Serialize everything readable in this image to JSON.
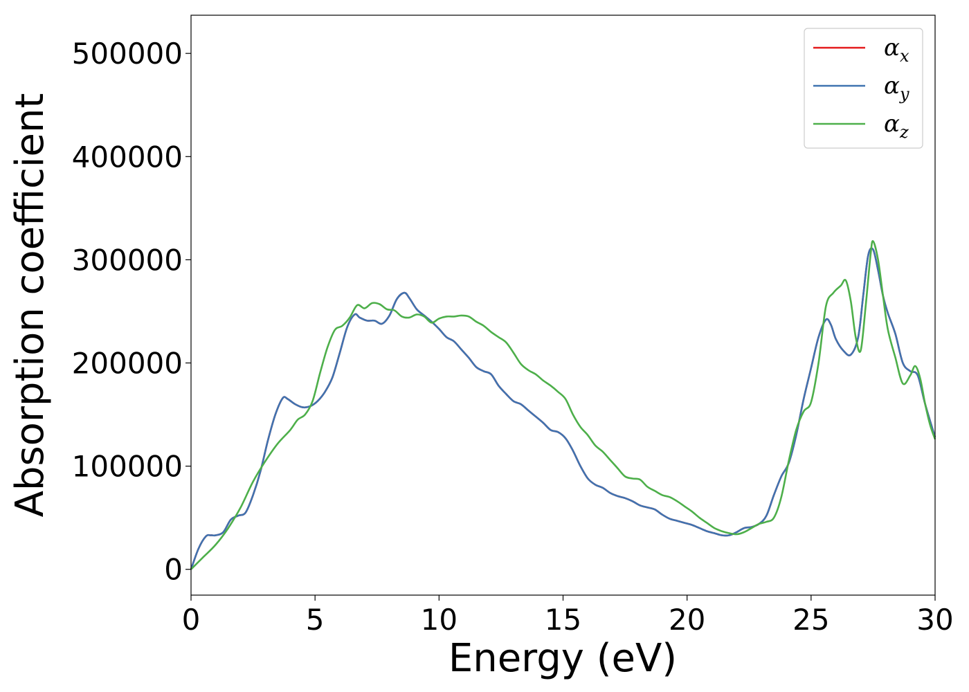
{
  "chart_data": {
    "type": "line",
    "xlabel": "Energy (eV)",
    "ylabel": "Absorption coefficient",
    "xlim": [
      0,
      30
    ],
    "ylim": [
      -25000,
      537000
    ],
    "xticks": [
      0,
      5,
      10,
      15,
      20,
      25,
      30
    ],
    "yticks": [
      0,
      100000,
      200000,
      300000,
      400000,
      500000
    ],
    "grid": false,
    "legend_position": "top-right",
    "series": [
      {
        "name": "α",
        "subscript": "x",
        "color": "#e41a1c",
        "x": [
          0,
          0.3,
          0.6,
          0.8,
          1.0,
          1.3,
          1.6,
          1.9,
          2.2,
          2.5,
          2.8,
          3.1,
          3.4,
          3.7,
          3.9,
          4.2,
          4.5,
          4.8,
          5.1,
          5.4,
          5.7,
          6.0,
          6.3,
          6.6,
          6.8,
          7.1,
          7.4,
          7.7,
          8.0,
          8.3,
          8.6,
          8.8,
          9.1,
          9.4,
          9.7,
          10.0,
          10.3,
          10.6,
          10.9,
          11.2,
          11.5,
          11.8,
          12.1,
          12.4,
          12.7,
          13.0,
          13.3,
          13.6,
          13.9,
          14.2,
          14.5,
          14.8,
          15.1,
          15.4,
          15.7,
          16.0,
          16.3,
          16.6,
          16.9,
          17.2,
          17.5,
          17.8,
          18.1,
          18.4,
          18.7,
          19.0,
          19.3,
          19.6,
          19.9,
          20.2,
          20.5,
          20.8,
          21.1,
          21.4,
          21.7,
          22.0,
          22.3,
          22.6,
          22.9,
          23.2,
          23.5,
          23.8,
          24.1,
          24.4,
          24.7,
          25.0,
          25.3,
          25.6,
          25.8,
          26.0,
          26.3,
          26.6,
          26.9,
          27.1,
          27.3,
          27.5,
          27.7,
          27.9,
          28.1,
          28.4,
          28.7,
          29.0,
          29.3,
          29.6,
          30.0
        ],
        "y": [
          0,
          20000,
          32000,
          33000,
          33000,
          36000,
          48000,
          52000,
          55000,
          72000,
          95000,
          125000,
          150000,
          166000,
          165000,
          160000,
          157000,
          158000,
          163000,
          172000,
          186000,
          210000,
          235000,
          247000,
          244000,
          241000,
          241000,
          238000,
          246000,
          262000,
          268000,
          263000,
          252000,
          246000,
          240000,
          233000,
          225000,
          221000,
          213000,
          205000,
          196000,
          192000,
          189000,
          178000,
          170000,
          163000,
          160000,
          154000,
          148000,
          142000,
          135000,
          133000,
          127000,
          115000,
          100000,
          88000,
          82000,
          79000,
          74000,
          71000,
          69000,
          66000,
          62000,
          60000,
          58000,
          53000,
          49000,
          47000,
          45000,
          43000,
          40000,
          37000,
          35000,
          33000,
          33000,
          36000,
          40000,
          41000,
          44000,
          52000,
          72000,
          90000,
          103000,
          130000,
          165000,
          195000,
          225000,
          242000,
          237000,
          223000,
          212000,
          208000,
          225000,
          265000,
          304000,
          310000,
          290000,
          265000,
          248000,
          228000,
          200000,
          192000,
          188000,
          160000,
          128000
        ]
      },
      {
        "name": "α",
        "subscript": "y",
        "color": "#3f73b0",
        "x": [
          0,
          0.3,
          0.6,
          0.8,
          1.0,
          1.3,
          1.6,
          1.9,
          2.2,
          2.5,
          2.8,
          3.1,
          3.4,
          3.7,
          3.9,
          4.2,
          4.5,
          4.8,
          5.1,
          5.4,
          5.7,
          6.0,
          6.3,
          6.6,
          6.8,
          7.1,
          7.4,
          7.7,
          8.0,
          8.3,
          8.6,
          8.8,
          9.1,
          9.4,
          9.7,
          10.0,
          10.3,
          10.6,
          10.9,
          11.2,
          11.5,
          11.8,
          12.1,
          12.4,
          12.7,
          13.0,
          13.3,
          13.6,
          13.9,
          14.2,
          14.5,
          14.8,
          15.1,
          15.4,
          15.7,
          16.0,
          16.3,
          16.6,
          16.9,
          17.2,
          17.5,
          17.8,
          18.1,
          18.4,
          18.7,
          19.0,
          19.3,
          19.6,
          19.9,
          20.2,
          20.5,
          20.8,
          21.1,
          21.4,
          21.7,
          22.0,
          22.3,
          22.6,
          22.9,
          23.2,
          23.5,
          23.8,
          24.1,
          24.4,
          24.7,
          25.0,
          25.3,
          25.6,
          25.8,
          26.0,
          26.3,
          26.6,
          26.9,
          27.1,
          27.3,
          27.5,
          27.7,
          27.9,
          28.1,
          28.4,
          28.7,
          29.0,
          29.3,
          29.6,
          30.0
        ],
        "y": [
          0,
          20000,
          32000,
          33000,
          33000,
          36000,
          48000,
          52000,
          55000,
          72000,
          95000,
          125000,
          150000,
          166000,
          165000,
          160000,
          157000,
          158000,
          163000,
          172000,
          186000,
          210000,
          235000,
          247000,
          244000,
          241000,
          241000,
          238000,
          246000,
          262000,
          268000,
          263000,
          252000,
          246000,
          240000,
          233000,
          225000,
          221000,
          213000,
          205000,
          196000,
          192000,
          189000,
          178000,
          170000,
          163000,
          160000,
          154000,
          148000,
          142000,
          135000,
          133000,
          127000,
          115000,
          100000,
          88000,
          82000,
          79000,
          74000,
          71000,
          69000,
          66000,
          62000,
          60000,
          58000,
          53000,
          49000,
          47000,
          45000,
          43000,
          40000,
          37000,
          35000,
          33000,
          33000,
          36000,
          40000,
          41000,
          44000,
          52000,
          72000,
          90000,
          103000,
          130000,
          165000,
          195000,
          225000,
          242000,
          237000,
          223000,
          212000,
          208000,
          225000,
          265000,
          304000,
          310000,
          290000,
          265000,
          248000,
          228000,
          200000,
          192000,
          188000,
          160000,
          128000
        ]
      },
      {
        "name": "α",
        "subscript": "z",
        "color": "#4daf4a",
        "x": [
          0,
          0.5,
          1.0,
          1.5,
          2.0,
          2.5,
          3.0,
          3.5,
          4.0,
          4.3,
          4.6,
          4.9,
          5.2,
          5.5,
          5.8,
          6.1,
          6.4,
          6.7,
          7.0,
          7.3,
          7.6,
          7.9,
          8.2,
          8.5,
          8.8,
          9.1,
          9.4,
          9.7,
          10.0,
          10.3,
          10.6,
          10.9,
          11.2,
          11.5,
          11.8,
          12.1,
          12.4,
          12.7,
          13.0,
          13.3,
          13.6,
          13.9,
          14.2,
          14.5,
          14.8,
          15.1,
          15.4,
          15.7,
          16.0,
          16.3,
          16.6,
          16.9,
          17.2,
          17.5,
          17.8,
          18.1,
          18.4,
          18.7,
          19.0,
          19.3,
          19.6,
          19.9,
          20.2,
          20.5,
          20.8,
          21.1,
          21.4,
          21.7,
          22.0,
          22.3,
          22.6,
          22.9,
          23.2,
          23.5,
          23.8,
          24.1,
          24.4,
          24.7,
          25.0,
          25.3,
          25.6,
          25.9,
          26.2,
          26.4,
          26.6,
          26.8,
          27.0,
          27.2,
          27.4,
          27.5,
          27.7,
          27.9,
          28.1,
          28.4,
          28.7,
          29.0,
          29.2,
          29.4,
          29.6,
          29.8,
          30.0
        ],
        "y": [
          0,
          12000,
          24000,
          40000,
          60000,
          85000,
          105000,
          122000,
          135000,
          145000,
          150000,
          163000,
          190000,
          215000,
          232000,
          236000,
          244000,
          256000,
          253000,
          258000,
          257000,
          252000,
          251000,
          245000,
          244000,
          247000,
          245000,
          239000,
          243000,
          245000,
          245000,
          246000,
          245000,
          240000,
          236000,
          230000,
          225000,
          220000,
          210000,
          199000,
          193000,
          189000,
          183000,
          178000,
          172000,
          165000,
          150000,
          138000,
          130000,
          120000,
          114000,
          106000,
          98000,
          90000,
          88000,
          87000,
          80000,
          76000,
          72000,
          70000,
          66000,
          61000,
          56000,
          50000,
          45000,
          40000,
          37000,
          35000,
          34000,
          36000,
          40000,
          44000,
          46000,
          50000,
          70000,
          105000,
          135000,
          153000,
          162000,
          200000,
          255000,
          268000,
          275000,
          280000,
          260000,
          225000,
          212000,
          255000,
          305000,
          318000,
          300000,
          265000,
          232000,
          205000,
          180000,
          188000,
          197000,
          185000,
          160000,
          140000,
          126000
        ]
      }
    ]
  }
}
